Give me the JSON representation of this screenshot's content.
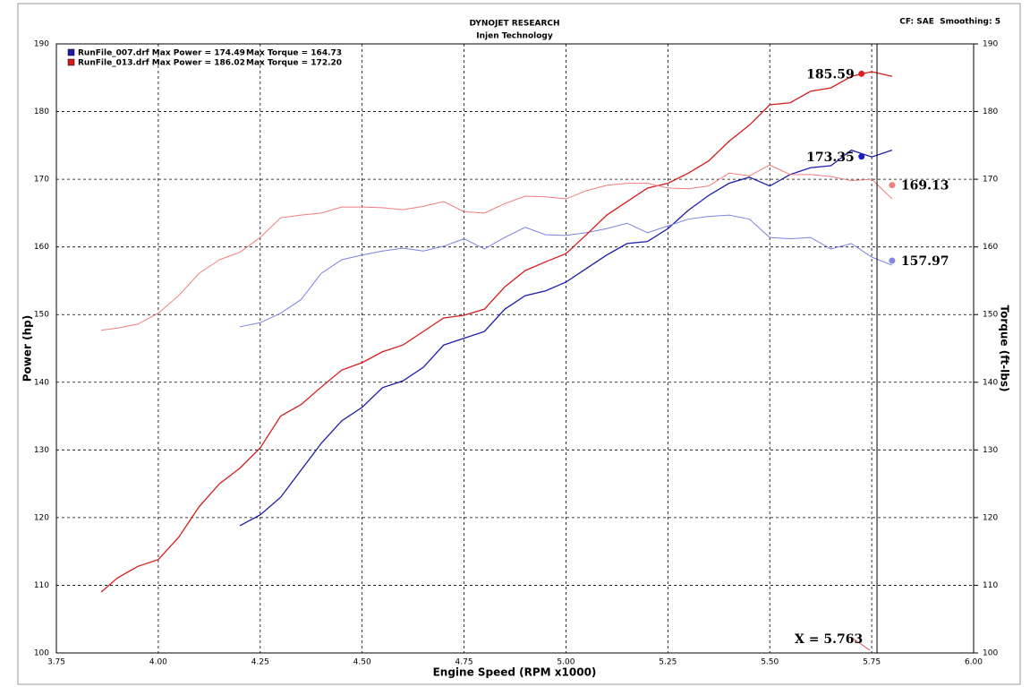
{
  "chart_data": {
    "type": "line",
    "title": "DYNOJET RESEARCH",
    "subtitle": "Injen Technology",
    "corner_note": "CF: SAE  Smoothing: 5",
    "xlabel": "Engine Speed (RPM x1000)",
    "ylabel": "Power (hp)",
    "y2label": "Torque (ft-lbs)",
    "xlim": [
      3.75,
      6.0
    ],
    "xticks": [
      {
        "value": 3.75,
        "label": "3.75"
      },
      {
        "value": 4.0,
        "label": "4.00"
      },
      {
        "value": 4.25,
        "label": "4.25"
      },
      {
        "value": 4.5,
        "label": "4.50"
      },
      {
        "value": 4.75,
        "label": "4.75"
      },
      {
        "value": 5.0,
        "label": "5.00"
      },
      {
        "value": 5.25,
        "label": "5.25"
      },
      {
        "value": 5.5,
        "label": "5.50"
      },
      {
        "value": 5.75,
        "label": "5.75"
      },
      {
        "value": 6.0,
        "label": "6.00"
      }
    ],
    "ylim": [
      100,
      190
    ],
    "yticks": [
      100,
      110,
      120,
      130,
      140,
      150,
      160,
      170,
      180,
      190
    ],
    "y2lim": [
      100,
      190
    ],
    "y2ticks": [
      100,
      110,
      120,
      130,
      140,
      150,
      160,
      170,
      180,
      190
    ],
    "grid": true,
    "legend": "top-left",
    "x": [
      3.86,
      3.9,
      3.95,
      4.0,
      4.05,
      4.1,
      4.15,
      4.2,
      4.25,
      4.3,
      4.35,
      4.4,
      4.45,
      4.5,
      4.55,
      4.6,
      4.65,
      4.7,
      4.75,
      4.8,
      4.85,
      4.9,
      4.95,
      5.0,
      5.05,
      5.1,
      5.15,
      5.2,
      5.25,
      5.3,
      5.35,
      5.4,
      5.45,
      5.5,
      5.55,
      5.6,
      5.65,
      5.7,
      5.75,
      5.8
    ],
    "series": [
      {
        "name": "RunFile_007.drf Max Power = 174.49",
        "color": "#1c1ca8",
        "values": [
          null,
          null,
          null,
          null,
          null,
          null,
          null,
          118.8,
          120.4,
          123.0,
          127.0,
          131.0,
          134.3,
          136.3,
          139.2,
          140.2,
          142.2,
          145.5,
          146.5,
          147.5,
          150.8,
          152.8,
          153.5,
          154.8,
          156.8,
          158.8,
          160.5,
          160.8,
          162.7,
          165.4,
          167.6,
          169.4,
          170.3,
          169.0,
          170.7,
          171.7,
          172.0,
          174.3,
          173.3,
          174.3
        ]
      },
      {
        "name": "Max Torque = 164.73",
        "color": "#7a82e0",
        "axis": "y2",
        "values": [
          null,
          null,
          null,
          null,
          null,
          null,
          null,
          148.2,
          148.8,
          150.2,
          152.2,
          156.1,
          158.1,
          158.8,
          159.4,
          159.8,
          159.4,
          160.1,
          161.2,
          159.7,
          161.4,
          162.9,
          161.8,
          161.7,
          162.1,
          162.7,
          163.5,
          162.1,
          163.1,
          164.1,
          164.5,
          164.7,
          164.1,
          161.4,
          161.2,
          161.4,
          159.7,
          160.5,
          158.5,
          157.3
        ]
      },
      {
        "name": "RunFile_013.drf Max Power = 186.02",
        "color": "#d41c1c",
        "values": [
          109.0,
          111.1,
          112.8,
          113.8,
          117.1,
          121.6,
          125.0,
          127.3,
          130.3,
          135.0,
          136.7,
          139.3,
          141.8,
          142.9,
          144.5,
          145.5,
          147.5,
          149.5,
          149.9,
          150.8,
          154.1,
          156.5,
          157.8,
          159.0,
          161.8,
          164.7,
          166.7,
          168.7,
          169.4,
          170.9,
          172.7,
          175.6,
          178.0,
          181.0,
          181.3,
          183.0,
          183.5,
          185.2,
          185.9,
          185.2
        ]
      },
      {
        "name": "Max Torque = 172.20",
        "color": "#f07c7c",
        "axis": "y2",
        "values": [
          147.7,
          148.0,
          148.6,
          150.2,
          152.8,
          156.1,
          158.1,
          159.2,
          161.4,
          164.3,
          164.7,
          165.0,
          165.9,
          165.9,
          165.8,
          165.5,
          166.0,
          166.7,
          165.2,
          165.0,
          166.4,
          167.5,
          167.4,
          167.1,
          168.3,
          169.1,
          169.4,
          169.4,
          168.7,
          168.6,
          169.0,
          170.9,
          170.5,
          172.1,
          170.7,
          170.7,
          170.4,
          169.8,
          170.0,
          167.1
        ]
      }
    ],
    "markers": [
      {
        "x": 5.725,
        "y": 185.59,
        "color": "#e02020"
      },
      {
        "x": 5.725,
        "y": 173.35,
        "color": "#1c1cc8"
      },
      {
        "x": 5.8,
        "y": 169.13,
        "color": "#f08080",
        "axis": "y2"
      },
      {
        "x": 5.8,
        "y": 157.97,
        "color": "#8088e0",
        "axis": "y2"
      }
    ],
    "cursor": {
      "x": 5.763,
      "label": "X = 5.763"
    }
  }
}
